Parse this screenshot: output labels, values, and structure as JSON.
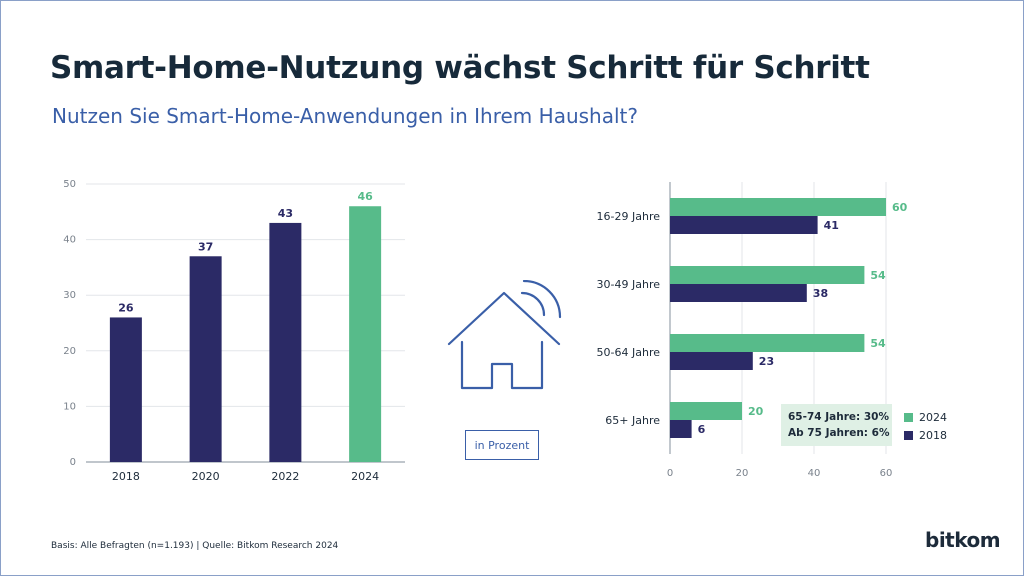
{
  "title": "Smart-Home-Nutzung wächst Schritt für Schritt",
  "subtitle": "Nutzen Sie Smart-Home-Anwendungen in Ihrem Haushalt?",
  "unit_note": "in Prozent",
  "annotation": {
    "line1": "65-74 Jahre: 30%",
    "line2": "Ab 75 Jahren: 6%"
  },
  "footer": "Basis: Alle Befragten (n=1.193) | Quelle: Bitkom Research 2024",
  "logo": "bitkom",
  "icons": {
    "house": "smart-home-icon"
  },
  "colors": {
    "navy": "#2b2a66",
    "green": "#57bb8a",
    "highlight_bg": "#dff0e5",
    "text": "#1d2b3a",
    "accent": "#3a5fa8"
  },
  "chart_data": [
    {
      "type": "bar",
      "categories": [
        "2018",
        "2020",
        "2022",
        "2024"
      ],
      "values": [
        26,
        37,
        43,
        46
      ],
      "highlight_index": 3,
      "ylim": [
        0,
        50
      ],
      "yticks": [
        0,
        10,
        20,
        30,
        40,
        50
      ],
      "grid": true
    },
    {
      "type": "bar",
      "orientation": "horizontal",
      "categories": [
        "16-29 Jahre",
        "30-49 Jahre",
        "50-64 Jahre",
        "65+ Jahre"
      ],
      "series": [
        {
          "name": "2024",
          "values": [
            60,
            54,
            54,
            20
          ]
        },
        {
          "name": "2018",
          "values": [
            41,
            38,
            23,
            6
          ]
        }
      ],
      "xlim": [
        0,
        60
      ],
      "xticks": [
        0,
        20,
        40,
        60
      ],
      "grid": true,
      "legend_position": "bottom-right"
    }
  ]
}
